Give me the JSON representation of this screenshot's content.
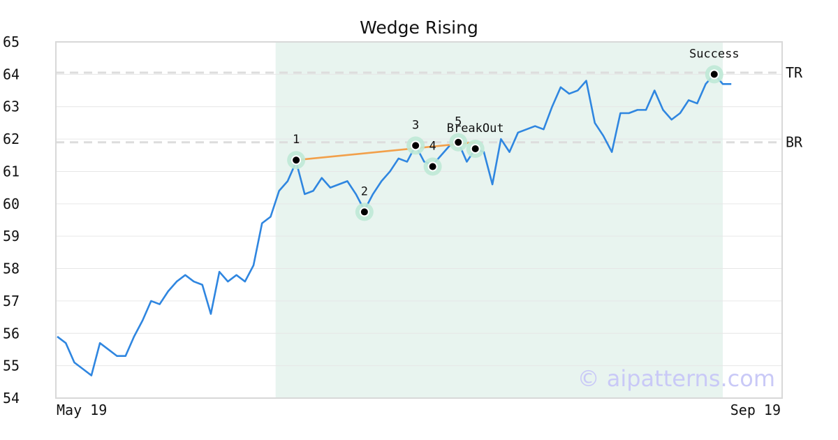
{
  "colors": {
    "price_line": "#2f86e0",
    "wedge_line": "#f2a04a",
    "highlight_region": "#e8f4ef",
    "point_halo": "#bfe9d6",
    "reference_line": "#dddddd",
    "grid": "#e6e6e6",
    "frame": "#d8d8d8",
    "watermark": "#c9c9f7"
  },
  "chart_data": {
    "type": "line",
    "title": "Wedge Rising",
    "ylim": [
      54,
      65
    ],
    "yticks": [
      54,
      55,
      56,
      57,
      58,
      59,
      60,
      61,
      62,
      63,
      64,
      65
    ],
    "xlim": [
      0,
      78
    ],
    "xtick_labels": [
      {
        "x": 0,
        "label": "May 19"
      },
      {
        "x": 78,
        "label": "Sep 19"
      }
    ],
    "highlight_range": [
      26,
      79
    ],
    "series": [
      {
        "values": [
          55.9,
          55.7,
          55.1,
          54.9,
          54.7,
          55.7,
          55.5,
          55.3,
          55.3,
          55.9,
          56.4,
          57.0,
          56.9,
          57.3,
          57.6,
          57.8,
          57.6,
          57.5,
          56.6,
          57.9,
          57.6,
          57.8,
          57.6,
          58.1,
          59.4,
          59.6,
          60.4,
          60.7,
          61.3,
          60.3,
          60.4,
          60.8,
          60.5,
          60.6,
          60.7,
          60.3,
          59.8,
          60.3,
          60.7,
          61.0,
          61.4,
          61.3,
          61.8,
          61.3,
          61.2,
          61.5,
          61.8,
          61.9,
          61.3,
          61.7,
          61.6,
          60.6,
          62.0,
          61.6,
          62.2,
          62.3,
          62.4,
          62.3,
          63.0,
          63.6,
          63.4,
          63.5,
          63.8,
          62.5,
          62.1,
          61.6,
          62.8,
          62.8,
          62.9,
          62.9,
          63.5,
          62.9,
          62.6,
          62.8,
          63.2,
          63.1,
          63.7,
          64.0,
          63.7,
          63.7
        ]
      }
    ],
    "wedge_line": {
      "x": [
        28,
        49
      ],
      "y": [
        61.35,
        61.9
      ]
    },
    "reference_lines": [
      {
        "label": "TR",
        "y": 64.05
      },
      {
        "label": "BR",
        "y": 61.9
      }
    ],
    "pattern_points": [
      {
        "label": "1",
        "x": 28,
        "y": 61.35
      },
      {
        "label": "2",
        "x": 36,
        "y": 59.75
      },
      {
        "label": "3",
        "x": 42,
        "y": 61.8
      },
      {
        "label": "4",
        "x": 44,
        "y": 61.15
      },
      {
        "label": "5",
        "x": 47,
        "y": 61.9
      }
    ],
    "event_points": [
      {
        "label": "BreakOut",
        "x": 49,
        "y": 61.7
      },
      {
        "label": "Success",
        "x": 77,
        "y": 64.0
      }
    ],
    "watermark": "© aipatterns.com"
  }
}
